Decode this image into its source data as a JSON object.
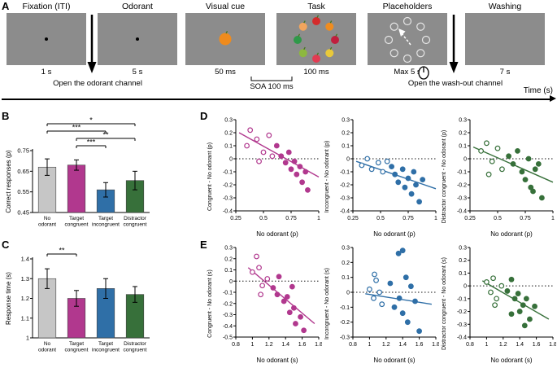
{
  "panels": {
    "a": "A",
    "b": "B",
    "c": "C",
    "d": "D",
    "e": "E"
  },
  "panel_a": {
    "box_color": "#8c8c8c",
    "stages": [
      {
        "name": "Fixation (ITI)",
        "duration": "1 s"
      },
      {
        "name": "Odorant",
        "duration": "5 s"
      },
      {
        "name": "Visual cue",
        "duration": "50 ms"
      },
      {
        "name": "Task",
        "duration": "100 ms"
      },
      {
        "name": "Placeholders",
        "duration": "Max 5 s"
      },
      {
        "name": "Washing",
        "duration": "7 s"
      }
    ],
    "soa_label": "SOA 100 ms",
    "open_odorant_label": "Open the odorant channel",
    "open_washout_label": "Open the wash-out channel",
    "time_axis_label": "Time (s)",
    "cue_fruit": {
      "name": "orange",
      "color": "#ef8b1d"
    },
    "task_fruits": [
      {
        "name": "apple",
        "color": "#d42b2b"
      },
      {
        "name": "orange",
        "color": "#f08c1e"
      },
      {
        "name": "cherry",
        "color": "#c01f3e"
      },
      {
        "name": "banana",
        "color": "#e9c93a"
      },
      {
        "name": "strawberry",
        "color": "#e23b52"
      },
      {
        "name": "pear",
        "color": "#8db83f"
      },
      {
        "name": "watermelon",
        "color": "#2f9949"
      },
      {
        "name": "peach",
        "color": "#f2a55d"
      }
    ],
    "placeholder_count": 8
  },
  "chart_data": [
    {
      "id": "B",
      "type": "bar",
      "panel": "B",
      "ylabel": "Correct responses (p)",
      "categories": [
        [
          "No",
          "odorant"
        ],
        [
          "Target",
          "congruent"
        ],
        [
          "Target",
          "incongruent"
        ],
        [
          "Distractor",
          "congruent"
        ]
      ],
      "values": [
        0.67,
        0.68,
        0.56,
        0.605
      ],
      "errors": [
        0.04,
        0.025,
        0.035,
        0.045
      ],
      "colors": [
        "#c6c6c6",
        "#b1388e",
        "#2f6fa7",
        "#37703a"
      ],
      "ylim": [
        0.45,
        0.75
      ],
      "yticks": [
        "0.45",
        "0.55",
        "0.65",
        "0.75"
      ],
      "significance": [
        {
          "from": 0,
          "to": 3,
          "label": "*",
          "level": 3
        },
        {
          "from": 0,
          "to": 2,
          "label": "***",
          "level": 2
        },
        {
          "from": 1,
          "to": 3,
          "label": "**",
          "level": 1
        },
        {
          "from": 1,
          "to": 2,
          "label": "***",
          "level": 0
        }
      ],
      "layout": {
        "l": 36,
        "r": 6,
        "t": 46,
        "b": 34
      }
    },
    {
      "id": "C",
      "type": "bar",
      "panel": "C",
      "ylabel": "Response time (s)",
      "categories": [
        [
          "No",
          "odorant"
        ],
        [
          "Target",
          "congruent"
        ],
        [
          "Target",
          "incongruent"
        ],
        [
          "Distractor",
          "congruent"
        ]
      ],
      "values": [
        1.3,
        1.2,
        1.25,
        1.22
      ],
      "errors": [
        0.05,
        0.04,
        0.05,
        0.04
      ],
      "colors": [
        "#c6c6c6",
        "#b1388e",
        "#2f6fa7",
        "#37703a"
      ],
      "ylim": [
        1,
        1.4
      ],
      "yticks": [
        "1",
        "1.1",
        "1.2",
        "1.3",
        "1.4"
      ],
      "significance": [
        {
          "from": 0,
          "to": 1,
          "label": "**",
          "level": 0
        }
      ],
      "layout": {
        "l": 36,
        "r": 6,
        "t": 22,
        "b": 35
      }
    },
    {
      "id": "D1",
      "type": "scatter",
      "panel": "D",
      "ylabel": "Congruent - No odorant (p)",
      "xlabel": "No odorant (p)",
      "color": "#b1388e",
      "zero_line": true,
      "xlim": [
        0.25,
        1
      ],
      "ylim": [
        -0.4,
        0.3
      ],
      "xticks": [
        "0.25",
        "0.5",
        "0.75",
        "1"
      ],
      "yticks": [
        "0.3",
        "0.2",
        "0.1",
        "0",
        "-0.1",
        "-0.2",
        "-0.3",
        "-0.4"
      ],
      "line": [
        [
          0.28,
          0.2
        ],
        [
          1.0,
          -0.14
        ]
      ],
      "points": [
        [
          0.35,
          0.1,
          0
        ],
        [
          0.38,
          0.22,
          0
        ],
        [
          0.44,
          0.15,
          0
        ],
        [
          0.5,
          0.05,
          0
        ],
        [
          0.55,
          0.18,
          0
        ],
        [
          0.58,
          0.02,
          0
        ],
        [
          0.46,
          -0.02,
          0
        ],
        [
          0.62,
          0.1,
          1
        ],
        [
          0.66,
          0.02,
          1
        ],
        [
          0.7,
          -0.03,
          1
        ],
        [
          0.73,
          0.05,
          1
        ],
        [
          0.75,
          -0.08,
          1
        ],
        [
          0.78,
          -0.02,
          1
        ],
        [
          0.8,
          -0.12,
          1
        ],
        [
          0.83,
          -0.06,
          1
        ],
        [
          0.85,
          -0.18,
          1
        ],
        [
          0.88,
          -0.1,
          1
        ],
        [
          0.9,
          -0.24,
          1
        ]
      ],
      "layout": {
        "l": 38,
        "r": 4,
        "t": 8,
        "b": 36
      }
    },
    {
      "id": "D2",
      "type": "scatter",
      "panel": "D",
      "ylabel": "Incongruent - No odorant (p)",
      "xlabel": "No odorant (p)",
      "color": "#2f6fa7",
      "zero_line": true,
      "xlim": [
        0.25,
        1
      ],
      "ylim": [
        -0.4,
        0.3
      ],
      "xticks": [
        "0.25",
        "0.5",
        "0.75",
        "1"
      ],
      "yticks": [
        "0.3",
        "0.2",
        "0.1",
        "0",
        "-0.1",
        "-0.2",
        "-0.3",
        "-0.4"
      ],
      "line": [
        [
          0.28,
          -0.02
        ],
        [
          1.0,
          -0.23
        ]
      ],
      "points": [
        [
          0.33,
          -0.05,
          0
        ],
        [
          0.38,
          0.0,
          0
        ],
        [
          0.42,
          -0.08,
          0
        ],
        [
          0.48,
          -0.03,
          0
        ],
        [
          0.52,
          -0.1,
          0
        ],
        [
          0.56,
          -0.02,
          0
        ],
        [
          0.6,
          -0.06,
          1
        ],
        [
          0.63,
          -0.12,
          1
        ],
        [
          0.66,
          -0.18,
          1
        ],
        [
          0.7,
          -0.08,
          1
        ],
        [
          0.72,
          -0.22,
          1
        ],
        [
          0.75,
          -0.15,
          1
        ],
        [
          0.78,
          -0.27,
          1
        ],
        [
          0.8,
          -0.1,
          1
        ],
        [
          0.82,
          -0.2,
          1
        ],
        [
          0.85,
          -0.33,
          1
        ],
        [
          0.88,
          -0.16,
          1
        ]
      ],
      "layout": {
        "l": 38,
        "r": 4,
        "t": 8,
        "b": 36
      }
    },
    {
      "id": "D3",
      "type": "scatter",
      "panel": "D",
      "ylabel": "Distractor congruent - No odorant (p)",
      "xlabel": "No odorant (p)",
      "color": "#37703a",
      "zero_line": true,
      "xlim": [
        0.25,
        1
      ],
      "ylim": [
        -0.4,
        0.3
      ],
      "xticks": [
        "0.25",
        "0.5",
        "0.75",
        "1"
      ],
      "yticks": [
        "0.3",
        "0.2",
        "0.1",
        "0",
        "-0.1",
        "-0.2",
        "-0.3",
        "-0.4"
      ],
      "line": [
        [
          0.28,
          0.09
        ],
        [
          1.0,
          -0.18
        ]
      ],
      "points": [
        [
          0.35,
          0.06,
          0
        ],
        [
          0.4,
          0.12,
          0
        ],
        [
          0.45,
          -0.02,
          0
        ],
        [
          0.5,
          0.08,
          0
        ],
        [
          0.54,
          -0.08,
          0
        ],
        [
          0.42,
          -0.12,
          0
        ],
        [
          0.6,
          0.02,
          1
        ],
        [
          0.64,
          -0.04,
          1
        ],
        [
          0.68,
          0.06,
          1
        ],
        [
          0.72,
          -0.1,
          1
        ],
        [
          0.75,
          -0.16,
          1
        ],
        [
          0.78,
          0.0,
          1
        ],
        [
          0.8,
          -0.22,
          1
        ],
        [
          0.84,
          -0.08,
          1
        ],
        [
          0.87,
          -0.04,
          1
        ],
        [
          0.9,
          -0.3,
          1
        ],
        [
          0.82,
          -0.25,
          1
        ]
      ],
      "layout": {
        "l": 38,
        "r": 4,
        "t": 8,
        "b": 36
      }
    },
    {
      "id": "E1",
      "type": "scatter",
      "panel": "E",
      "ylabel": "Congruent - No odorant (s)",
      "xlabel": "No odorant (s)",
      "color": "#b1388e",
      "zero_line": true,
      "xlim": [
        0.8,
        1.8
      ],
      "ylim": [
        -0.5,
        0.3
      ],
      "xticks": [
        "0.8",
        "1",
        "1.2",
        "1.4",
        "1.6",
        "1.8"
      ],
      "yticks": [
        "0.3",
        "0.2",
        "0.1",
        "0",
        "-0.1",
        "-0.2",
        "-0.3",
        "-0.4",
        "-0.5"
      ],
      "line": [
        [
          0.95,
          0.12
        ],
        [
          1.75,
          -0.38
        ]
      ],
      "points": [
        [
          1.0,
          0.08,
          0
        ],
        [
          1.05,
          0.22,
          0
        ],
        [
          1.08,
          0.12,
          0
        ],
        [
          1.12,
          -0.04,
          0
        ],
        [
          1.18,
          0.02,
          0
        ],
        [
          1.1,
          -0.12,
          0
        ],
        [
          1.25,
          -0.06,
          1
        ],
        [
          1.3,
          -0.12,
          1
        ],
        [
          1.32,
          0.04,
          1
        ],
        [
          1.38,
          -0.18,
          1
        ],
        [
          1.42,
          -0.14,
          1
        ],
        [
          1.45,
          -0.28,
          1
        ],
        [
          1.48,
          -0.05,
          1
        ],
        [
          1.5,
          -0.24,
          1
        ],
        [
          1.52,
          -0.38,
          1
        ],
        [
          1.58,
          -0.32,
          1
        ],
        [
          1.62,
          -0.44,
          1
        ]
      ],
      "layout": {
        "l": 38,
        "r": 4,
        "t": 8,
        "b": 36
      }
    },
    {
      "id": "E2",
      "type": "scatter",
      "panel": "E",
      "ylabel": "Incongruent - No odorant (s)",
      "xlabel": "No odorant (s)",
      "color": "#2f6fa7",
      "zero_line": true,
      "xlim": [
        0.8,
        1.8
      ],
      "ylim": [
        -0.3,
        0.3
      ],
      "xticks": [
        "0.8",
        "1",
        "1.2",
        "1.4",
        "1.6",
        "1.8"
      ],
      "yticks": [
        "0.3",
        "0.2",
        "0.1",
        "0",
        "-0.1",
        "-0.2",
        "-0.3"
      ],
      "line": [
        [
          0.95,
          -0.01
        ],
        [
          1.75,
          -0.08
        ]
      ],
      "points": [
        [
          1.0,
          0.02,
          0
        ],
        [
          1.05,
          -0.04,
          0
        ],
        [
          1.08,
          0.08,
          0
        ],
        [
          1.12,
          0.0,
          0
        ],
        [
          1.15,
          -0.08,
          0
        ],
        [
          1.06,
          0.12,
          0
        ],
        [
          1.25,
          0.06,
          1
        ],
        [
          1.3,
          -0.1,
          1
        ],
        [
          1.35,
          0.26,
          1
        ],
        [
          1.4,
          0.28,
          1
        ],
        [
          1.4,
          -0.14,
          1
        ],
        [
          1.44,
          0.1,
          1
        ],
        [
          1.46,
          -0.2,
          1
        ],
        [
          1.5,
          0.04,
          1
        ],
        [
          1.55,
          -0.06,
          1
        ],
        [
          1.6,
          -0.26,
          1
        ],
        [
          1.36,
          -0.04,
          1
        ]
      ],
      "layout": {
        "l": 38,
        "r": 4,
        "t": 8,
        "b": 36
      }
    },
    {
      "id": "E3",
      "type": "scatter",
      "panel": "E",
      "ylabel": "Distractor congruent - No odorant (s)",
      "xlabel": "No odorant (s)",
      "color": "#37703a",
      "zero_line": true,
      "xlim": [
        0.8,
        1.8
      ],
      "ylim": [
        -0.4,
        0.3
      ],
      "xticks": [
        "0.8",
        "1",
        "1.2",
        "1.4",
        "1.6",
        "1.8"
      ],
      "yticks": [
        "0.3",
        "0.2",
        "0.1",
        "0",
        "-0.1",
        "-0.2",
        "-0.3",
        "-0.4"
      ],
      "line": [
        [
          0.95,
          0.04
        ],
        [
          1.75,
          -0.26
        ]
      ],
      "points": [
        [
          1.0,
          0.03,
          0
        ],
        [
          1.05,
          -0.05,
          0
        ],
        [
          1.08,
          0.06,
          0
        ],
        [
          1.12,
          -0.1,
          0
        ],
        [
          1.18,
          0.0,
          0
        ],
        [
          1.1,
          -0.15,
          0
        ],
        [
          1.25,
          -0.04,
          1
        ],
        [
          1.3,
          0.05,
          1
        ],
        [
          1.34,
          -0.1,
          1
        ],
        [
          1.38,
          -0.06,
          1
        ],
        [
          1.4,
          -0.2,
          1
        ],
        [
          1.44,
          -0.15,
          1
        ],
        [
          1.48,
          -0.1,
          1
        ],
        [
          1.52,
          -0.26,
          1
        ],
        [
          1.58,
          -0.16,
          1
        ],
        [
          1.46,
          -0.31,
          1
        ],
        [
          1.3,
          -0.22,
          1
        ]
      ],
      "layout": {
        "l": 38,
        "r": 4,
        "t": 8,
        "b": 36
      }
    }
  ]
}
